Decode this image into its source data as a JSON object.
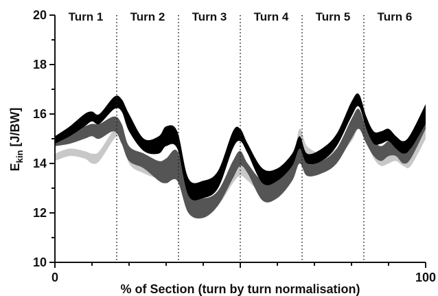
{
  "chart_data": {
    "type": "area",
    "xlabel": "% of Section (turn by turn normalisation)",
    "ylabel": "E",
    "ylabel_sub": "kin",
    "ylabel_unit": " [J/BW]",
    "xlim": [
      0,
      100
    ],
    "ylim": [
      10,
      20
    ],
    "x_ticks": [
      0,
      100
    ],
    "y_ticks": [
      10,
      12,
      14,
      16,
      18,
      20
    ],
    "turn_dividers": [
      16.67,
      33.33,
      50,
      66.67,
      83.33
    ],
    "turns": [
      {
        "label": "Turn 1",
        "center": 8.33
      },
      {
        "label": "Turn 2",
        "center": 25.0
      },
      {
        "label": "Turn 3",
        "center": 41.67
      },
      {
        "label": "Turn 4",
        "center": 58.33
      },
      {
        "label": "Turn 5",
        "center": 75.0
      },
      {
        "label": "Turn 6",
        "center": 91.67
      }
    ],
    "x": [
      0,
      4,
      8,
      10,
      12,
      16,
      18,
      20,
      24,
      28,
      30,
      33,
      36,
      40,
      44,
      48,
      50,
      52,
      56,
      60,
      64,
      66,
      68,
      72,
      76,
      80,
      82,
      84,
      86,
      88,
      90,
      92,
      94,
      96,
      100
    ],
    "series": [
      {
        "color": "#c8c8c8",
        "lower": [
          14.1,
          14.3,
          14.2,
          14.0,
          14.1,
          15.0,
          15.2,
          14.0,
          13.6,
          13.4,
          13.5,
          13.9,
          12.3,
          11.9,
          12.3,
          13.2,
          13.5,
          13.3,
          12.8,
          12.9,
          13.7,
          14.8,
          14.2,
          14.0,
          14.2,
          14.9,
          15.4,
          14.9,
          14.2,
          13.9,
          14.0,
          14.1,
          13.9,
          13.9,
          15.0
        ],
        "upper": [
          14.4,
          14.6,
          14.5,
          14.4,
          14.5,
          15.4,
          15.6,
          14.4,
          14.0,
          13.8,
          13.9,
          14.3,
          12.7,
          12.3,
          12.7,
          13.6,
          13.9,
          13.7,
          13.2,
          13.3,
          14.1,
          15.4,
          14.7,
          14.4,
          14.6,
          15.4,
          15.8,
          15.3,
          14.7,
          14.3,
          14.4,
          14.5,
          14.3,
          14.4,
          15.6
        ]
      },
      {
        "color": "#555555",
        "lower": [
          14.7,
          14.8,
          15.0,
          15.1,
          15.0,
          15.3,
          14.8,
          14.1,
          13.8,
          13.3,
          13.2,
          13.3,
          12.0,
          11.8,
          12.3,
          13.4,
          13.9,
          13.6,
          12.5,
          12.6,
          13.3,
          14.0,
          13.5,
          13.6,
          14.0,
          15.0,
          15.4,
          14.8,
          14.3,
          14.1,
          14.3,
          14.3,
          14.0,
          14.2,
          15.4
        ],
        "upper": [
          15.0,
          15.3,
          15.5,
          15.6,
          15.6,
          15.9,
          15.6,
          14.7,
          14.4,
          14.1,
          14.2,
          14.5,
          12.9,
          12.6,
          12.9,
          14.1,
          14.5,
          14.0,
          13.3,
          13.4,
          14.1,
          14.7,
          14.0,
          14.1,
          14.6,
          15.8,
          16.2,
          15.4,
          14.9,
          14.7,
          14.9,
          14.8,
          14.5,
          14.6,
          15.9
        ]
      },
      {
        "color": "#000000",
        "lower": [
          14.8,
          15.1,
          15.5,
          15.7,
          15.6,
          16.2,
          16.1,
          15.3,
          14.5,
          14.4,
          14.7,
          14.6,
          12.7,
          12.6,
          13.0,
          14.6,
          14.9,
          14.4,
          13.2,
          13.3,
          13.9,
          14.6,
          14.0,
          14.1,
          14.7,
          15.9,
          16.3,
          15.4,
          14.8,
          14.8,
          14.9,
          14.6,
          14.4,
          14.6,
          15.6
        ],
        "upper": [
          15.1,
          15.5,
          16.0,
          16.1,
          16.0,
          16.7,
          16.6,
          16.0,
          15.0,
          15.1,
          15.5,
          15.3,
          13.4,
          13.3,
          13.7,
          15.3,
          15.4,
          14.8,
          13.8,
          13.8,
          14.4,
          15.1,
          14.4,
          14.6,
          15.2,
          16.5,
          16.8,
          15.9,
          15.3,
          15.3,
          15.4,
          15.1,
          14.9,
          15.2,
          16.4
        ]
      }
    ],
    "grid": false,
    "legend": "none"
  }
}
